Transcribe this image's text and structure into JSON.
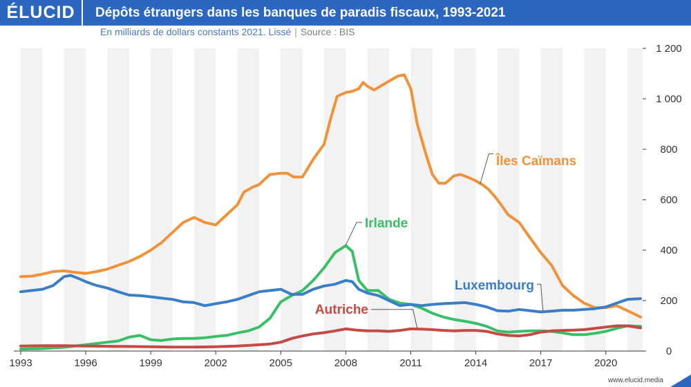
{
  "header": {
    "brand": "ÉLUCID",
    "title": "Dépôts étrangers dans les banques de paradis fiscaux, 1993-2021"
  },
  "subtitle": {
    "unit": "En milliards de dollars constants 2021. Lissé",
    "separator": "|",
    "source": "Source : BIS"
  },
  "footer": {
    "url": "www.elucid.media"
  },
  "colors": {
    "brand": "#2b66bf",
    "band": "#f2f2f2",
    "cayman": "#f0923a",
    "ireland": "#39bf66",
    "luxembourg": "#3a7ec7",
    "austria": "#c44a44"
  },
  "chart_data": {
    "type": "line",
    "xlim": [
      1993,
      2021.7
    ],
    "ylim": [
      0,
      1200
    ],
    "x_ticks": [
      1993,
      1996,
      1999,
      2002,
      2005,
      2008,
      2011,
      2014,
      2017,
      2020
    ],
    "x_tick_labels": [
      "1993",
      "1996",
      "1999",
      "2002",
      "2005",
      "2008",
      "2011",
      "2014",
      "2017",
      "2020"
    ],
    "y_ticks": [
      0,
      200,
      400,
      600,
      800,
      1000,
      1200
    ],
    "y_tick_labels": [
      "0",
      "200",
      "400",
      "600",
      "800",
      "1 000",
      "1 200"
    ],
    "grid": "alternating vertical bands",
    "series": [
      {
        "name": "Îles Caïmans",
        "color": "#f0923a",
        "points": [
          [
            1993,
            295
          ],
          [
            1993.5,
            297
          ],
          [
            1994,
            305
          ],
          [
            1994.5,
            315
          ],
          [
            1995,
            318
          ],
          [
            1995.5,
            312
          ],
          [
            1996,
            308
          ],
          [
            1996.5,
            315
          ],
          [
            1997,
            325
          ],
          [
            1997.5,
            340
          ],
          [
            1998,
            355
          ],
          [
            1998.5,
            375
          ],
          [
            1999,
            400
          ],
          [
            1999.5,
            430
          ],
          [
            2000,
            470
          ],
          [
            2000.5,
            510
          ],
          [
            2001,
            530
          ],
          [
            2001.5,
            510
          ],
          [
            2002,
            500
          ],
          [
            2002.5,
            540
          ],
          [
            2003,
            580
          ],
          [
            2003.3,
            630
          ],
          [
            2003.7,
            650
          ],
          [
            2004,
            660
          ],
          [
            2004.5,
            700
          ],
          [
            2005,
            705
          ],
          [
            2005.3,
            705
          ],
          [
            2005.6,
            690
          ],
          [
            2006,
            690
          ],
          [
            2006.5,
            760
          ],
          [
            2007,
            820
          ],
          [
            2007.3,
            920
          ],
          [
            2007.6,
            1010
          ],
          [
            2008,
            1025
          ],
          [
            2008.3,
            1030
          ],
          [
            2008.6,
            1040
          ],
          [
            2008.8,
            1065
          ],
          [
            2009,
            1050
          ],
          [
            2009.3,
            1035
          ],
          [
            2009.6,
            1050
          ],
          [
            2010,
            1070
          ],
          [
            2010.4,
            1090
          ],
          [
            2010.7,
            1095
          ],
          [
            2011,
            1040
          ],
          [
            2011.3,
            900
          ],
          [
            2011.7,
            780
          ],
          [
            2012,
            700
          ],
          [
            2012.3,
            665
          ],
          [
            2012.6,
            665
          ],
          [
            2013,
            695
          ],
          [
            2013.3,
            700
          ],
          [
            2013.6,
            690
          ],
          [
            2014,
            675
          ],
          [
            2014.3,
            660
          ],
          [
            2014.6,
            640
          ],
          [
            2015,
            600
          ],
          [
            2015.5,
            540
          ],
          [
            2016,
            510
          ],
          [
            2016.5,
            450
          ],
          [
            2017,
            390
          ],
          [
            2017.5,
            340
          ],
          [
            2018,
            260
          ],
          [
            2018.5,
            220
          ],
          [
            2019,
            190
          ],
          [
            2019.5,
            172
          ],
          [
            2020,
            172
          ],
          [
            2020.5,
            180
          ],
          [
            2021,
            160
          ],
          [
            2021.6,
            135
          ]
        ]
      },
      {
        "name": "Irlande",
        "color": "#39bf66",
        "points": [
          [
            1993,
            8
          ],
          [
            1994,
            10
          ],
          [
            1995,
            15
          ],
          [
            1996,
            25
          ],
          [
            1997,
            35
          ],
          [
            1997.5,
            40
          ],
          [
            1998,
            55
          ],
          [
            1998.5,
            62
          ],
          [
            1999,
            45
          ],
          [
            1999.5,
            42
          ],
          [
            2000,
            48
          ],
          [
            2000.5,
            50
          ],
          [
            2001,
            50
          ],
          [
            2001.5,
            53
          ],
          [
            2002,
            58
          ],
          [
            2002.5,
            62
          ],
          [
            2003,
            72
          ],
          [
            2003.5,
            80
          ],
          [
            2004,
            95
          ],
          [
            2004.5,
            130
          ],
          [
            2005,
            195
          ],
          [
            2005.5,
            220
          ],
          [
            2006,
            240
          ],
          [
            2006.5,
            280
          ],
          [
            2007,
            330
          ],
          [
            2007.5,
            390
          ],
          [
            2008,
            418
          ],
          [
            2008.3,
            395
          ],
          [
            2008.6,
            280
          ],
          [
            2009,
            240
          ],
          [
            2009.5,
            240
          ],
          [
            2010,
            205
          ],
          [
            2010.5,
            190
          ],
          [
            2011,
            185
          ],
          [
            2011.5,
            170
          ],
          [
            2012,
            150
          ],
          [
            2012.5,
            135
          ],
          [
            2013,
            125
          ],
          [
            2013.5,
            118
          ],
          [
            2014,
            110
          ],
          [
            2014.5,
            98
          ],
          [
            2015,
            80
          ],
          [
            2015.5,
            75
          ],
          [
            2016,
            78
          ],
          [
            2016.5,
            80
          ],
          [
            2017,
            80
          ],
          [
            2017.5,
            78
          ],
          [
            2018,
            72
          ],
          [
            2018.5,
            65
          ],
          [
            2019,
            65
          ],
          [
            2019.5,
            70
          ],
          [
            2020,
            78
          ],
          [
            2020.5,
            90
          ],
          [
            2021,
            100
          ],
          [
            2021.6,
            98
          ]
        ]
      },
      {
        "name": "Luxembourg",
        "color": "#3a7ec7",
        "points": [
          [
            1993,
            235
          ],
          [
            1993.5,
            240
          ],
          [
            1994,
            245
          ],
          [
            1994.5,
            260
          ],
          [
            1995,
            295
          ],
          [
            1995.3,
            300
          ],
          [
            1995.6,
            290
          ],
          [
            1996,
            275
          ],
          [
            1996.5,
            260
          ],
          [
            1997,
            250
          ],
          [
            1997.5,
            235
          ],
          [
            1998,
            222
          ],
          [
            1998.5,
            220
          ],
          [
            1999,
            215
          ],
          [
            1999.5,
            210
          ],
          [
            2000,
            205
          ],
          [
            2000.5,
            195
          ],
          [
            2001,
            192
          ],
          [
            2001.5,
            180
          ],
          [
            2002,
            188
          ],
          [
            2002.5,
            195
          ],
          [
            2003,
            205
          ],
          [
            2003.5,
            220
          ],
          [
            2004,
            235
          ],
          [
            2004.5,
            240
          ],
          [
            2005,
            245
          ],
          [
            2005.5,
            225
          ],
          [
            2006,
            225
          ],
          [
            2006.5,
            245
          ],
          [
            2007,
            258
          ],
          [
            2007.5,
            265
          ],
          [
            2008,
            280
          ],
          [
            2008.3,
            275
          ],
          [
            2008.6,
            245
          ],
          [
            2009,
            230
          ],
          [
            2009.5,
            220
          ],
          [
            2010,
            200
          ],
          [
            2010.5,
            180
          ],
          [
            2011,
            185
          ],
          [
            2011.5,
            180
          ],
          [
            2012,
            185
          ],
          [
            2012.5,
            188
          ],
          [
            2013,
            190
          ],
          [
            2013.5,
            192
          ],
          [
            2014,
            185
          ],
          [
            2014.5,
            175
          ],
          [
            2015,
            160
          ],
          [
            2015.5,
            158
          ],
          [
            2016,
            165
          ],
          [
            2016.5,
            160
          ],
          [
            2017,
            155
          ],
          [
            2017.5,
            158
          ],
          [
            2018,
            162
          ],
          [
            2018.5,
            162
          ],
          [
            2019,
            165
          ],
          [
            2019.5,
            168
          ],
          [
            2020,
            175
          ],
          [
            2020.5,
            190
          ],
          [
            2021,
            205
          ],
          [
            2021.6,
            208
          ]
        ]
      },
      {
        "name": "Autriche",
        "color": "#c44a44",
        "points": [
          [
            1993,
            20
          ],
          [
            1994,
            21
          ],
          [
            1995,
            21
          ],
          [
            1996,
            20
          ],
          [
            1997,
            19
          ],
          [
            1998,
            18
          ],
          [
            1999,
            17
          ],
          [
            2000,
            16
          ],
          [
            2001,
            16
          ],
          [
            2002,
            17
          ],
          [
            2003,
            20
          ],
          [
            2004,
            25
          ],
          [
            2004.5,
            28
          ],
          [
            2005,
            35
          ],
          [
            2005.5,
            50
          ],
          [
            2006,
            60
          ],
          [
            2006.5,
            68
          ],
          [
            2007,
            73
          ],
          [
            2007.5,
            80
          ],
          [
            2008,
            88
          ],
          [
            2008.5,
            83
          ],
          [
            2009,
            80
          ],
          [
            2009.5,
            80
          ],
          [
            2010,
            78
          ],
          [
            2010.5,
            82
          ],
          [
            2011,
            88
          ],
          [
            2011.5,
            87
          ],
          [
            2012,
            85
          ],
          [
            2012.5,
            82
          ],
          [
            2013,
            80
          ],
          [
            2013.5,
            82
          ],
          [
            2014,
            82
          ],
          [
            2014.5,
            78
          ],
          [
            2015,
            68
          ],
          [
            2015.5,
            62
          ],
          [
            2016,
            60
          ],
          [
            2016.5,
            65
          ],
          [
            2017,
            75
          ],
          [
            2017.5,
            80
          ],
          [
            2018,
            82
          ],
          [
            2018.5,
            83
          ],
          [
            2019,
            85
          ],
          [
            2019.5,
            90
          ],
          [
            2020,
            95
          ],
          [
            2020.5,
            100
          ],
          [
            2021,
            100
          ],
          [
            2021.6,
            92
          ]
        ]
      }
    ],
    "annotations": [
      {
        "text": "Îles Caïmans",
        "series": "Îles Caïmans",
        "color": "#f0923a"
      },
      {
        "text": "Irlande",
        "series": "Irlande",
        "color": "#39bf66"
      },
      {
        "text": "Luxembourg",
        "series": "Luxembourg",
        "color": "#3a7ec7"
      },
      {
        "text": "Autriche",
        "series": "Autriche",
        "color": "#c44a44"
      }
    ]
  }
}
